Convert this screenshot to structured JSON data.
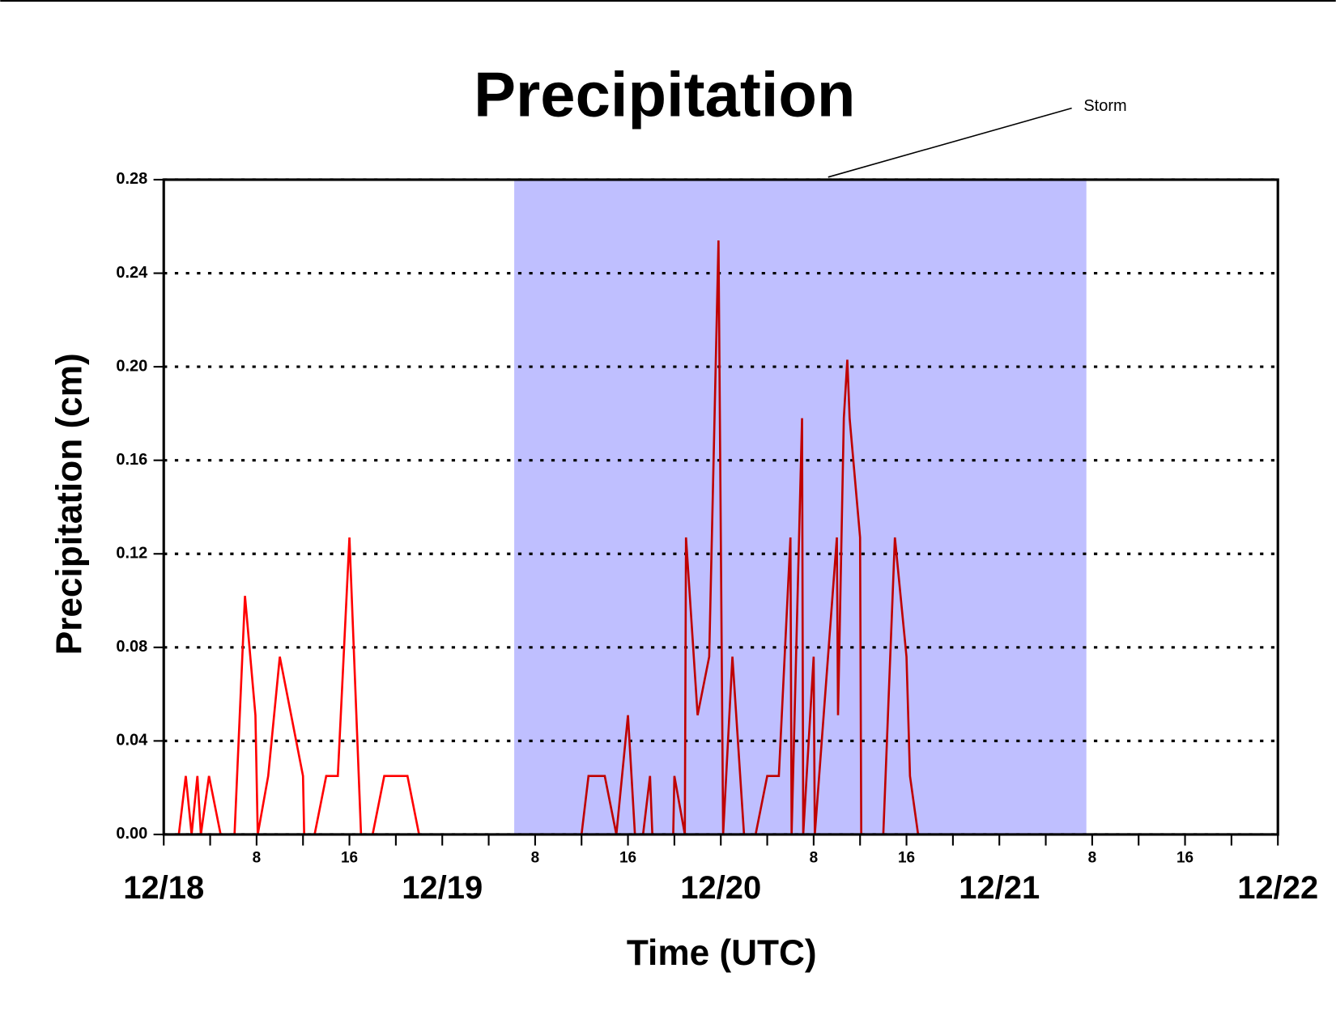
{
  "chart_data": {
    "type": "line",
    "title": "Precipitation",
    "xlabel": "Time (UTC)",
    "ylabel": "Precipitation (cm)",
    "annotation": {
      "text": "Storm",
      "xlim": [
        30.2,
        79.5
      ],
      "color": "#bfbfff"
    },
    "x": [
      0,
      1.3,
      1.9,
      2.4,
      2.9,
      3.2,
      3.9,
      4.9,
      6.1,
      7.0,
      7.9,
      8.1,
      9.0,
      10.0,
      12.0,
      12.1,
      13.0,
      14.0,
      15.0,
      16.0,
      17.0,
      18.0,
      19.0,
      21.0,
      22.0,
      36.0,
      36.6,
      38.0,
      39.0,
      40.0,
      40.6,
      41.3,
      41.9,
      42.1,
      43.9,
      44.0,
      44.9,
      45.0,
      46.0,
      47.0,
      47.8,
      48.2,
      49.0,
      50.0,
      51.0,
      52.0,
      53.0,
      54.0,
      54.1,
      55.0,
      55.1,
      56.0,
      56.1,
      58.0,
      58.1,
      58.6,
      58.9,
      59.1,
      60.0,
      60.1,
      62.0,
      63.0,
      64.0,
      64.3,
      65.0,
      96
    ],
    "series": [
      {
        "name": "Precipitation",
        "color": "#ff0000",
        "values": [
          0,
          0,
          0.025,
          0,
          0.025,
          0,
          0.025,
          0,
          0,
          0.102,
          0.051,
          0,
          0.025,
          0.076,
          0.025,
          0,
          0,
          0.025,
          0.025,
          0.127,
          0,
          0,
          0.025,
          0.025,
          0,
          0,
          0.025,
          0.025,
          0,
          0.051,
          0,
          0,
          0.025,
          0,
          0,
          0.025,
          0,
          0.127,
          0.051,
          0.076,
          0.254,
          0,
          0.076,
          0,
          0,
          0.025,
          0.025,
          0.127,
          0,
          0.178,
          0,
          0.076,
          0,
          0.127,
          0.051,
          0.178,
          0.203,
          0.178,
          0.127,
          0,
          0,
          0.127,
          0.076,
          0.025,
          0,
          0
        ]
      }
    ],
    "xlim": [
      0,
      96
    ],
    "ylim": [
      0,
      0.28
    ],
    "yticks": [
      {
        "value": 0,
        "label": "0.00"
      },
      0.04,
      0.08,
      0.12,
      0.16,
      {
        "value": 0.2,
        "label": "0.20"
      },
      0.24,
      0.28
    ],
    "xticks": [
      {
        "value": 0,
        "label": "12/18"
      },
      {
        "value": 24,
        "label": "12/19"
      },
      {
        "value": 48,
        "label": "12/20"
      },
      {
        "value": 72,
        "label": "12/21"
      },
      {
        "value": 96,
        "label": "12/22"
      }
    ],
    "xhourticks": [
      8,
      16,
      {
        "value": 32,
        "label": "8"
      },
      {
        "value": 40,
        "label": "16"
      },
      {
        "value": 56,
        "label": "8"
      },
      {
        "value": 64,
        "label": "16"
      },
      {
        "value": 80,
        "label": "8"
      },
      {
        "value": 88,
        "label": "16"
      }
    ],
    "xminorticks": [
      4,
      12,
      20,
      28,
      36,
      44,
      52,
      60,
      68,
      76,
      84,
      92
    ],
    "grid": true
  }
}
